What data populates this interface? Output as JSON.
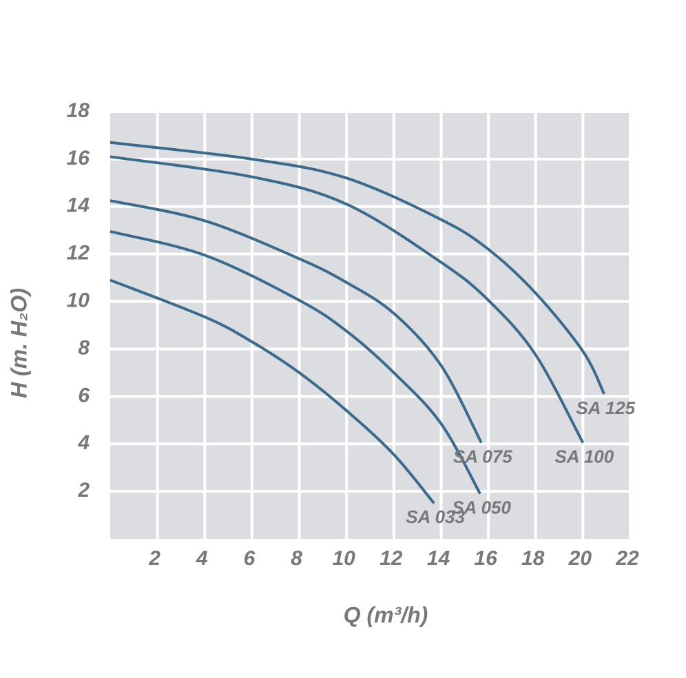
{
  "chart_data": {
    "type": "line",
    "x_label": "Q (m³/h)",
    "y_label": "H (m. H₂O)",
    "xlim": [
      0,
      22
    ],
    "ylim": [
      0,
      18
    ],
    "xticks": [
      2,
      4,
      6,
      8,
      10,
      12,
      14,
      16,
      18,
      20,
      22
    ],
    "yticks": [
      2,
      4,
      6,
      8,
      10,
      12,
      14,
      16,
      18
    ],
    "grid": true,
    "series": [
      {
        "name": "SA 125",
        "color": "#3b6b8c",
        "x": [
          0,
          6,
          10,
          14,
          16,
          18,
          20,
          20.9
        ],
        "values": [
          16.7,
          16.0,
          15.2,
          13.45,
          12.2,
          10.35,
          7.9,
          6.1
        ]
      },
      {
        "name": "SA 100",
        "color": "#3b6b8c",
        "x": [
          0,
          6,
          10,
          14,
          16,
          18,
          20
        ],
        "values": [
          16.1,
          15.25,
          14.1,
          11.65,
          10.05,
          7.75,
          4.05
        ]
      },
      {
        "name": "SA 075",
        "color": "#3b6b8c",
        "x": [
          0,
          4,
          8,
          10,
          12,
          14,
          15.7
        ],
        "values": [
          14.25,
          13.4,
          11.8,
          10.8,
          9.5,
          7.3,
          4.05
        ]
      },
      {
        "name": "SA 050",
        "color": "#3b6b8c",
        "x": [
          0,
          4,
          8,
          10,
          12,
          14,
          15.65
        ],
        "values": [
          12.95,
          11.95,
          10.05,
          8.75,
          7.0,
          4.85,
          1.9
        ]
      },
      {
        "name": "SA 033",
        "color": "#3b6b8c",
        "x": [
          0,
          4,
          6,
          8,
          10,
          12,
          13.7
        ],
        "values": [
          10.9,
          9.35,
          8.3,
          7.0,
          5.4,
          3.55,
          1.5
        ]
      }
    ]
  }
}
